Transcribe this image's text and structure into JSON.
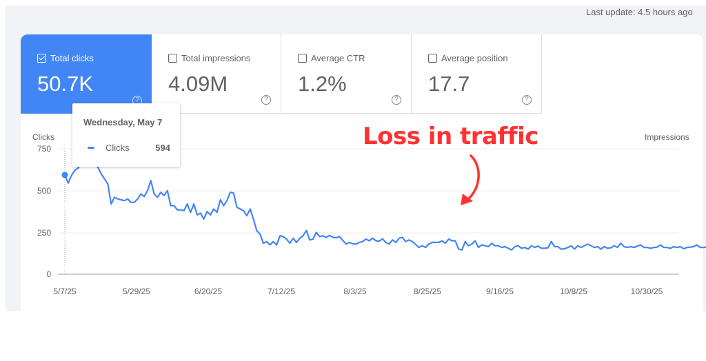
{
  "header": {
    "last_update": "Last update: 4.5 hours ago"
  },
  "metrics": [
    {
      "label": "Total clicks",
      "value": "50.7K",
      "checked": true
    },
    {
      "label": "Total impressions",
      "value": "4.09M",
      "checked": false
    },
    {
      "label": "Average CTR",
      "value": "1.2%",
      "checked": false
    },
    {
      "label": "Average position",
      "value": "17.7",
      "checked": false
    }
  ],
  "help_icon": "?",
  "tooltip": {
    "date": "Wednesday, May 7",
    "series": "Clicks",
    "value": "594"
  },
  "annotation": {
    "text": "Loss in traffic",
    "color": "#ff3131"
  },
  "colors": {
    "accent": "#4285f4",
    "annotation": "#ff3131"
  },
  "chart_data": {
    "type": "line",
    "title": "",
    "ylabel": "Clicks",
    "ylabel_right": "Impressions",
    "ylim": [
      0,
      750
    ],
    "yticks": [
      "750",
      "500",
      "250",
      "0"
    ],
    "xticks": [
      "5/7/25",
      "5/29/25",
      "6/20/25",
      "7/12/25",
      "8/3/25",
      "8/25/25",
      "9/16/25",
      "10/8/25",
      "10/30/25"
    ],
    "grid": true,
    "series": [
      {
        "name": "Clicks",
        "color": "#4285f4",
        "x_start": "5/7/25",
        "x_step_days": 1,
        "values": [
          594,
          545,
          590,
          620,
          635,
          660,
          690,
          650,
          670,
          660,
          640,
          600,
          570,
          540,
          420,
          460,
          450,
          445,
          440,
          450,
          430,
          430,
          450,
          480,
          465,
          500,
          560,
          480,
          460,
          490,
          470,
          500,
          410,
          410,
          385,
          385,
          380,
          420,
          370,
          420,
          355,
          365,
          330,
          375,
          355,
          390,
          370,
          445,
          410,
          440,
          490,
          485,
          400,
          390,
          380,
          350,
          390,
          330,
          260,
          240,
          185,
          195,
          175,
          195,
          175,
          230,
          225,
          210,
          185,
          215,
          190,
          215,
          230,
          262,
          205,
          210,
          250,
          225,
          230,
          220,
          232,
          220,
          218,
          225,
          202,
          180,
          190,
          182,
          180,
          190,
          195,
          210,
          200,
          215,
          200,
          198,
          212,
          190,
          180,
          205,
          190,
          215,
          220,
          195,
          205,
          195,
          178,
          160,
          170,
          160,
          180,
          190,
          190,
          190,
          200,
          185,
          210,
          200,
          200,
          150,
          145,
          195,
          170,
          180,
          200,
          160,
          175,
          170,
          165,
          185,
          170,
          170,
          160,
          165,
          155,
          145,
          165,
          170,
          155,
          160,
          150,
          170,
          160,
          168,
          155,
          155,
          158,
          195,
          165,
          165,
          150,
          152,
          160,
          170,
          150,
          170,
          160,
          170,
          180,
          170,
          160,
          165,
          150,
          165,
          155,
          158,
          170,
          160,
          185,
          165,
          160,
          165,
          160,
          168,
          175,
          160,
          160,
          155,
          160,
          162,
          175,
          160,
          160,
          155,
          165,
          160,
          165,
          152,
          160,
          162,
          165,
          175,
          160,
          160,
          162
        ]
      }
    ]
  }
}
